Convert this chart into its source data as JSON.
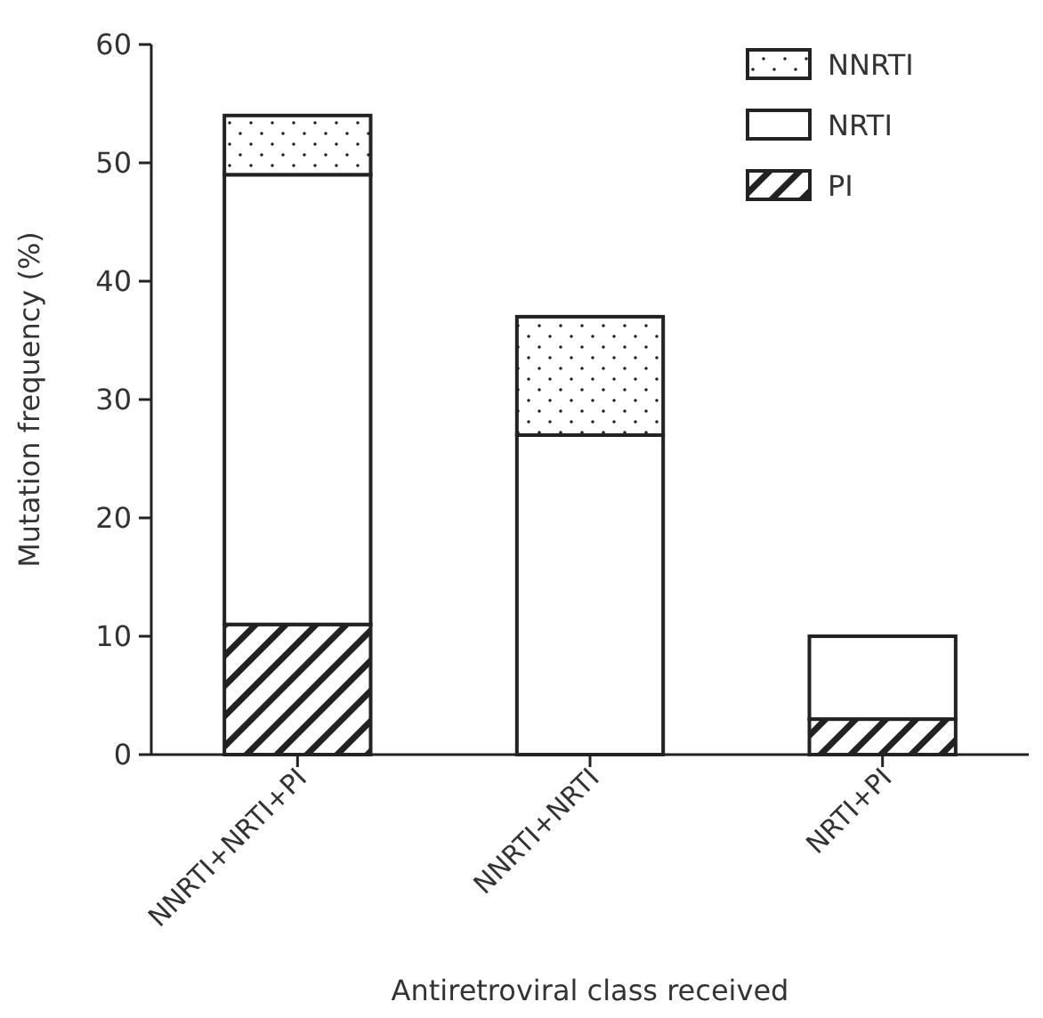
{
  "chart_data": {
    "type": "bar",
    "stacked": true,
    "xlabel": "Antiretroviral class received",
    "ylabel": "Mutation frequency (%)",
    "categories": [
      "NNRTI+NRTI+PI",
      "NNRTI+NRTI",
      "NRTI+PI"
    ],
    "series": [
      {
        "name": "PI",
        "color": "#222222",
        "values": [
          11,
          0,
          3
        ]
      },
      {
        "name": "NRTI",
        "color": "#ffffff",
        "values": [
          38,
          27,
          7
        ]
      },
      {
        "name": "NNRTI",
        "color": "#222222",
        "values": [
          5,
          10,
          0
        ]
      }
    ],
    "ylim": [
      0,
      60
    ],
    "yticks": [
      0,
      10,
      20,
      30,
      40,
      50,
      60
    ],
    "legend": "top right",
    "grid": false
  }
}
